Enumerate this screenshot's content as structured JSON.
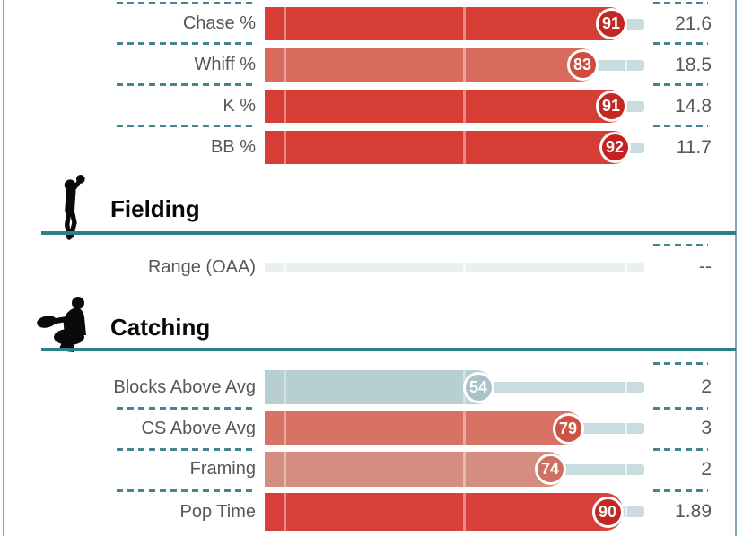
{
  "chart_data": {
    "type": "bar",
    "orientation": "horizontal",
    "xlim": [
      0,
      100
    ],
    "legend": "none",
    "note": "percentile badges plotted on a 0-100 scale with gridlines at 0, 50 and 95",
    "groups": [
      {
        "section": "",
        "metrics": [
          "Chase %",
          "Whiff %",
          "K %",
          "BB %"
        ],
        "percentiles": [
          91,
          83,
          91,
          92
        ],
        "values": [
          "21.6",
          "18.5",
          "14.8",
          "11.7"
        ]
      },
      {
        "section": "Fielding",
        "metrics": [
          "Range (OAA)"
        ],
        "percentiles": [
          null
        ],
        "values": [
          "--"
        ]
      },
      {
        "section": "Catching",
        "metrics": [
          "Blocks Above Avg",
          "CS Above Avg",
          "Framing",
          "Pop Time"
        ],
        "percentiles": [
          54,
          79,
          74,
          90
        ],
        "values": [
          "2",
          "3",
          "2",
          "1.89"
        ]
      }
    ]
  },
  "colors": {
    "teal_rule": "#2f7f8b",
    "dash": "#45858f",
    "page_border": "#7fa9b3",
    "label_text": "#54585b",
    "value_text": "#54585b",
    "header_text": "#070707",
    "badge_text": "#ffffff",
    "track_remainder": "#c9dcdf",
    "track_empty": "#eaf0f2",
    "icon_black": "#0a0a0a"
  },
  "sections": [
    {
      "id": "top",
      "title": "",
      "icon": "",
      "rows": [
        {
          "label": "Chase %",
          "pct": 91,
          "value": "21.6",
          "bar": "#d63d35",
          "badge": "#c32723"
        },
        {
          "label": "Whiff %",
          "pct": 83,
          "value": "18.5",
          "bar": "#d96b5d",
          "badge": "#ce4b3e"
        },
        {
          "label": "K %",
          "pct": 91,
          "value": "14.8",
          "bar": "#d63d35",
          "badge": "#c32723"
        },
        {
          "label": "BB %",
          "pct": 92,
          "value": "11.7",
          "bar": "#d63d35",
          "badge": "#c32220"
        }
      ]
    },
    {
      "id": "fielding",
      "title": "Fielding",
      "icon": "fielder-icon",
      "rows": [
        {
          "label": "Range (OAA)",
          "pct": null,
          "value": "--",
          "bar": null,
          "badge": null
        }
      ]
    },
    {
      "id": "catching",
      "title": "Catching",
      "icon": "catcher-icon",
      "rows": [
        {
          "label": "Blocks Above Avg",
          "pct": 54,
          "value": "2",
          "bar": "#b7ced2",
          "badge": "#a9c3c9"
        },
        {
          "label": "CS Above Avg",
          "pct": 79,
          "value": "3",
          "bar": "#d87264",
          "badge": "#cc5244"
        },
        {
          "label": "Framing",
          "pct": 74,
          "value": "2",
          "bar": "#d58d81",
          "badge": "#cd7162"
        },
        {
          "label": "Pop Time",
          "pct": 90,
          "value": "1.89",
          "bar": "#d8403a",
          "badge": "#c32723"
        }
      ]
    }
  ]
}
